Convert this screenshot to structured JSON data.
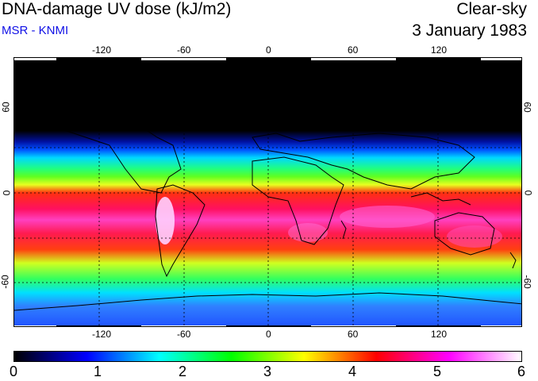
{
  "header": {
    "title": "DNA-damage UV dose (kJ/m2)",
    "subtitle": "MSR - KNMI",
    "condition": "Clear-sky",
    "date": "3 January 1983"
  },
  "map": {
    "description_colors": {
      "polar_night": "#000000",
      "high": "#ff2a8c",
      "very_high": "#ffffff",
      "mid": "#33ff33",
      "low": "#0050ff"
    },
    "lon_ticks_top": [
      "-120",
      "-60",
      "0",
      "60",
      "120"
    ],
    "lon_ticks_bottom": [
      "-120",
      "-60",
      "0",
      "60",
      "120"
    ],
    "lat_ticks_left": [
      "60",
      "0",
      "-60"
    ],
    "lat_ticks_right": [
      "60",
      "0",
      "-60"
    ]
  },
  "colorbar": {
    "ticks": [
      "0",
      "1",
      "2",
      "3",
      "4",
      "5",
      "6"
    ],
    "colors": [
      "#000000",
      "#0000ff",
      "#00ffff",
      "#00ff00",
      "#ffff00",
      "#ff0000",
      "#ff00ff",
      "#ffffff"
    ]
  }
}
